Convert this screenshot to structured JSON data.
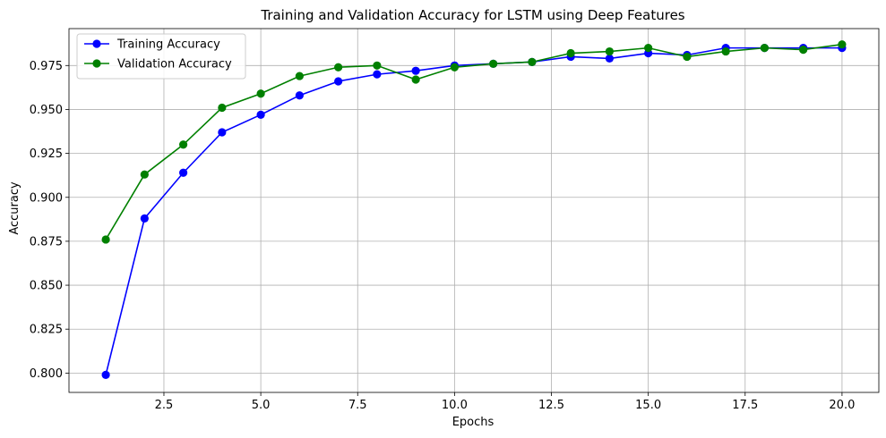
{
  "chart_data": {
    "type": "line",
    "title": "Training and Validation Accuracy for LSTM using Deep Features",
    "xlabel": "Epochs",
    "ylabel": "Accuracy",
    "xlim": [
      0.05,
      20.95
    ],
    "ylim": [
      0.789,
      0.996
    ],
    "xticks": [
      2.5,
      5.0,
      7.5,
      10.0,
      12.5,
      15.0,
      17.5,
      20.0
    ],
    "xtick_labels": [
      "2.5",
      "5.0",
      "7.5",
      "10.0",
      "12.5",
      "15.0",
      "17.5",
      "20.0"
    ],
    "yticks": [
      0.8,
      0.825,
      0.85,
      0.875,
      0.9,
      0.925,
      0.95,
      0.975
    ],
    "ytick_labels": [
      "0.800",
      "0.825",
      "0.850",
      "0.875",
      "0.900",
      "0.925",
      "0.950",
      "0.975"
    ],
    "grid": true,
    "legend_position": "top-left",
    "x": [
      1,
      2,
      3,
      4,
      5,
      6,
      7,
      8,
      9,
      10,
      11,
      12,
      13,
      14,
      15,
      16,
      17,
      18,
      19,
      20
    ],
    "series": [
      {
        "name": "Training Accuracy",
        "color": "#0000ff",
        "values": [
          0.799,
          0.888,
          0.914,
          0.937,
          0.947,
          0.958,
          0.966,
          0.97,
          0.972,
          0.975,
          0.976,
          0.977,
          0.98,
          0.979,
          0.982,
          0.981,
          0.985,
          0.985,
          0.985,
          0.985
        ]
      },
      {
        "name": "Validation Accuracy",
        "color": "#008000",
        "values": [
          0.876,
          0.913,
          0.93,
          0.951,
          0.959,
          0.969,
          0.974,
          0.975,
          0.967,
          0.974,
          0.976,
          0.977,
          0.982,
          0.983,
          0.985,
          0.98,
          0.983,
          0.985,
          0.984,
          0.987
        ]
      }
    ]
  }
}
